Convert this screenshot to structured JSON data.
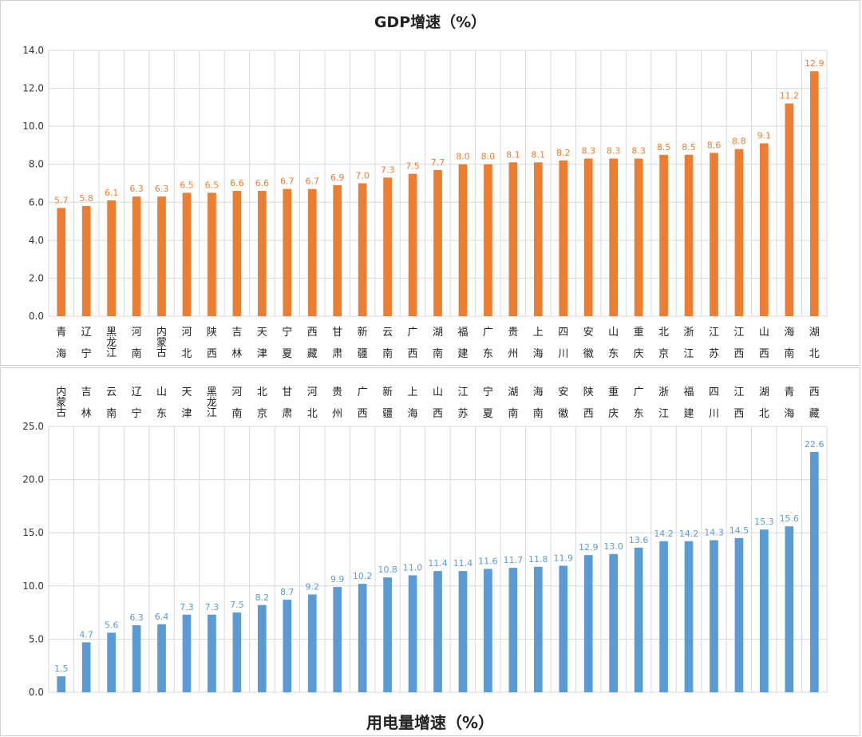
{
  "chart_data": [
    {
      "type": "bar",
      "title": "GDP增速（%）",
      "categories": [
        "青海",
        "辽宁",
        "黑龙江",
        "河南",
        "内蒙古",
        "河北",
        "陕西",
        "吉林",
        "天津",
        "宁夏",
        "西藏",
        "甘肃",
        "新疆",
        "云南",
        "广西",
        "湖南",
        "福建",
        "广东",
        "贵州",
        "上海",
        "四川",
        "安徽",
        "山东",
        "重庆",
        "北京",
        "浙江",
        "江苏",
        "江西",
        "山西",
        "海南",
        "湖北"
      ],
      "values": [
        5.7,
        5.8,
        6.1,
        6.3,
        6.3,
        6.5,
        6.5,
        6.6,
        6.6,
        6.7,
        6.7,
        6.9,
        7.0,
        7.3,
        7.5,
        7.7,
        8.0,
        8.0,
        8.1,
        8.1,
        8.2,
        8.3,
        8.3,
        8.3,
        8.5,
        8.5,
        8.6,
        8.8,
        9.1,
        11.2,
        12.9
      ],
      "value_labels": [
        "5.7",
        "5.8",
        "6.1",
        "6.3",
        "6.3",
        "6.5",
        "6.5",
        "6.6",
        "6.6",
        "6.7",
        "6.7",
        "6.9",
        "7.0",
        "7.3",
        "7.5",
        "7.7",
        "8.0",
        "8.0",
        "8.1",
        "8.1",
        "8.2",
        "8.3",
        "8.3",
        "8.3",
        "8.5",
        "8.5",
        "8.6",
        "8.8",
        "9.1",
        "11.2",
        "12.9"
      ],
      "yticks": [
        "0.0",
        "2.0",
        "4.0",
        "6.0",
        "8.0",
        "10.0",
        "12.0",
        "14.0"
      ],
      "ylim": [
        0,
        14
      ],
      "grid": true,
      "color": "#ED7D31",
      "label_color": "#ED7D31"
    },
    {
      "type": "bar",
      "title": "用电量增速（%）",
      "categories": [
        "内蒙古",
        "吉林",
        "云南",
        "辽宁",
        "山东",
        "天津",
        "黑龙江",
        "河南",
        "北京",
        "甘肃",
        "河北",
        "贵州",
        "广西",
        "新疆",
        "上海",
        "山西",
        "江苏",
        "宁夏",
        "湖南",
        "海南",
        "安徽",
        "陕西",
        "重庆",
        "广东",
        "浙江",
        "福建",
        "四川",
        "江西",
        "湖北",
        "青海",
        "西藏"
      ],
      "values": [
        1.5,
        4.7,
        5.6,
        6.3,
        6.4,
        7.3,
        7.3,
        7.5,
        8.2,
        8.7,
        9.2,
        9.9,
        10.2,
        10.8,
        11.0,
        11.4,
        11.4,
        11.6,
        11.7,
        11.8,
        11.9,
        12.9,
        13.0,
        13.6,
        14.2,
        14.2,
        14.3,
        14.5,
        15.3,
        15.6,
        22.6
      ],
      "value_labels": [
        "1.5",
        "4.7",
        "5.6",
        "6.3",
        "6.4",
        "7.3",
        "7.3",
        "7.5",
        "8.2",
        "8.7",
        "9.2",
        "9.9",
        "10.2",
        "10.8",
        "11.0",
        "11.4",
        "11.4",
        "11.6",
        "11.7",
        "11.8",
        "11.9",
        "12.9",
        "13.0",
        "13.6",
        "14.2",
        "14.2",
        "14.3",
        "14.5",
        "15.3",
        "15.6",
        "22.6"
      ],
      "yticks": [
        "0.0",
        "5.0",
        "10.0",
        "15.0",
        "20.0",
        "25.0"
      ],
      "ylim": [
        0,
        25
      ],
      "grid": true,
      "color": "#5B9BD5",
      "label_color": "#5B9BD5"
    }
  ]
}
